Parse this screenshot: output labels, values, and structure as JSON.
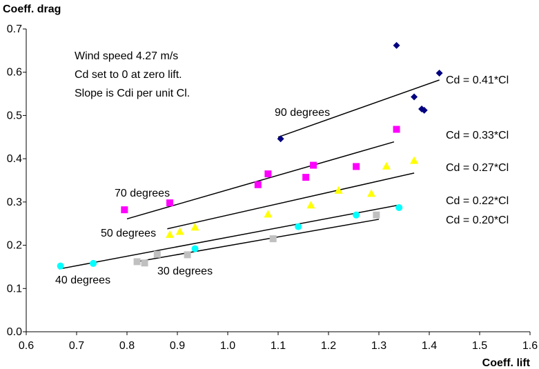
{
  "chart_data": {
    "type": "scatter",
    "xlabel": "Coeff. lift",
    "ylabel": "Coeff. drag",
    "xlim": [
      0.6,
      1.6
    ],
    "ylim": [
      0.0,
      0.7
    ],
    "x_ticks": [
      "0.6",
      "0.7",
      "0.8",
      "0.9",
      "1.0",
      "1.1",
      "1.2",
      "1.3",
      "1.4",
      "1.5",
      "1.6"
    ],
    "y_ticks": [
      "0.0",
      "0.1",
      "0.2",
      "0.3",
      "0.4",
      "0.5",
      "0.6",
      "0.7"
    ],
    "grid": false,
    "notes": [
      "Wind speed 4.27 m/s",
      "Cd set to 0 at zero lift.",
      "Slope is Cdi per unit Cl."
    ],
    "series": [
      {
        "name": "90 degrees",
        "marker": "diamond",
        "color": "#000080",
        "points": [
          [
            1.335,
            0.662
          ],
          [
            1.42,
            0.598
          ],
          [
            1.37,
            0.543
          ],
          [
            1.385,
            0.515
          ],
          [
            1.39,
            0.512
          ],
          [
            1.105,
            0.446
          ]
        ],
        "fit_label": "Cd = 0.41*Cl",
        "fit_range": [
          1.1,
          1.42
        ],
        "fit_y": [
          0.45,
          0.582
        ]
      },
      {
        "name": "70 degrees",
        "marker": "square",
        "color": "#ff00ff",
        "points": [
          [
            0.795,
            0.282
          ],
          [
            0.885,
            0.298
          ],
          [
            1.06,
            0.34
          ],
          [
            1.08,
            0.365
          ],
          [
            1.155,
            0.357
          ],
          [
            1.17,
            0.385
          ],
          [
            1.255,
            0.382
          ],
          [
            1.335,
            0.468
          ]
        ],
        "fit_label": "Cd = 0.33*Cl",
        "fit_range": [
          0.8,
          1.33
        ],
        "fit_y": [
          0.261,
          0.439
        ]
      },
      {
        "name": "50 degrees",
        "marker": "triangle",
        "color": "#ffff00",
        "points": [
          [
            0.885,
            0.225
          ],
          [
            0.905,
            0.232
          ],
          [
            0.935,
            0.242
          ],
          [
            1.08,
            0.272
          ],
          [
            1.165,
            0.293
          ],
          [
            1.22,
            0.327
          ],
          [
            1.285,
            0.32
          ],
          [
            1.315,
            0.383
          ],
          [
            1.37,
            0.396
          ]
        ],
        "fit_label": "Cd = 0.27*Cl",
        "fit_range": [
          0.88,
          1.37
        ],
        "fit_y": [
          0.238,
          0.367
        ]
      },
      {
        "name": "40 degrees",
        "marker": "circle",
        "color": "#00ffff",
        "points": [
          [
            0.668,
            0.152
          ],
          [
            0.733,
            0.158
          ],
          [
            0.935,
            0.192
          ],
          [
            1.14,
            0.243
          ],
          [
            1.255,
            0.27
          ],
          [
            1.34,
            0.287
          ]
        ],
        "fit_label": "Cd = 0.22*Cl",
        "fit_range": [
          0.665,
          1.34
        ],
        "fit_y": [
          0.145,
          0.293
        ]
      },
      {
        "name": "30 degrees",
        "marker": "square",
        "color": "#c0c0c0",
        "points": [
          [
            0.82,
            0.162
          ],
          [
            0.835,
            0.159
          ],
          [
            0.86,
            0.179
          ],
          [
            0.92,
            0.178
          ],
          [
            1.09,
            0.215
          ],
          [
            1.295,
            0.27
          ]
        ],
        "fit_label": "Cd = 0.20*Cl",
        "fit_range": [
          0.82,
          1.3
        ],
        "fit_y": [
          0.162,
          0.26
        ]
      }
    ]
  }
}
